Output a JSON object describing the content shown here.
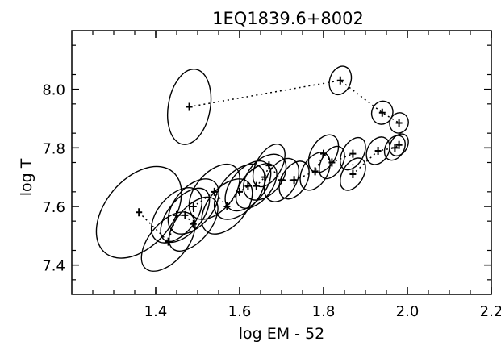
{
  "chart_data": {
    "type": "scatter",
    "title": "1EQ1839.6+8002",
    "xlabel": "log EM - 52",
    "ylabel": "log T",
    "xlim": [
      1.2,
      2.2
    ],
    "ylim": [
      7.3,
      8.2
    ],
    "xticks": [
      {
        "value": 1.4,
        "label": "1.4"
      },
      {
        "value": 1.6,
        "label": "1.6"
      },
      {
        "value": 1.8,
        "label": "1.8"
      },
      {
        "value": 2.0,
        "label": "2.0"
      },
      {
        "value": 2.2,
        "label": "2.2"
      }
    ],
    "yticks": [
      {
        "value": 7.4,
        "label": "7.4"
      },
      {
        "value": 7.6,
        "label": "7.6"
      },
      {
        "value": 7.8,
        "label": "7.8"
      },
      {
        "value": 8.0,
        "label": "8.0"
      }
    ],
    "grid": false,
    "legend": "none",
    "series": [
      {
        "points": [
          {
            "x": 1.48,
            "y": 7.94,
            "rx": 0.05,
            "ry": 0.13,
            "angle": 10
          },
          {
            "x": 1.84,
            "y": 8.03,
            "rx": 0.025,
            "ry": 0.05,
            "angle": 20
          },
          {
            "x": 1.94,
            "y": 7.92,
            "rx": 0.025,
            "ry": 0.04,
            "angle": 20
          },
          {
            "x": 1.98,
            "y": 7.885,
            "rx": 0.022,
            "ry": 0.035,
            "angle": 20
          }
        ]
      },
      {
        "points": [
          {
            "x": 1.36,
            "y": 7.58,
            "rx": 0.08,
            "ry": 0.18,
            "angle": 40
          },
          {
            "x": 1.43,
            "y": 7.48,
            "rx": 0.045,
            "ry": 0.12,
            "angle": 40
          },
          {
            "x": 1.45,
            "y": 7.57,
            "rx": 0.045,
            "ry": 0.11,
            "angle": 40
          },
          {
            "x": 1.47,
            "y": 7.57,
            "rx": 0.04,
            "ry": 0.11,
            "angle": 40
          },
          {
            "x": 1.49,
            "y": 7.54,
            "rx": 0.04,
            "ry": 0.11,
            "angle": 40
          },
          {
            "x": 1.49,
            "y": 7.6,
            "rx": 0.045,
            "ry": 0.11,
            "angle": 40
          },
          {
            "x": 1.54,
            "y": 7.65,
            "rx": 0.045,
            "ry": 0.11,
            "angle": 40
          },
          {
            "x": 1.57,
            "y": 7.6,
            "rx": 0.045,
            "ry": 0.11,
            "angle": 40
          },
          {
            "x": 1.6,
            "y": 7.65,
            "rx": 0.045,
            "ry": 0.11,
            "angle": 40
          },
          {
            "x": 1.62,
            "y": 7.67,
            "rx": 0.04,
            "ry": 0.1,
            "angle": 40
          },
          {
            "x": 1.64,
            "y": 7.67,
            "rx": 0.035,
            "ry": 0.09,
            "angle": 40
          },
          {
            "x": 1.66,
            "y": 7.7,
            "rx": 0.04,
            "ry": 0.09,
            "angle": 40
          },
          {
            "x": 1.67,
            "y": 7.74,
            "rx": 0.03,
            "ry": 0.08,
            "angle": 30
          },
          {
            "x": 1.7,
            "y": 7.69,
            "rx": 0.035,
            "ry": 0.08,
            "angle": 30
          },
          {
            "x": 1.73,
            "y": 7.69,
            "rx": 0.03,
            "ry": 0.07,
            "angle": 30
          },
          {
            "x": 1.78,
            "y": 7.72,
            "rx": 0.03,
            "ry": 0.07,
            "angle": 30
          },
          {
            "x": 1.8,
            "y": 7.78,
            "rx": 0.03,
            "ry": 0.07,
            "angle": 30
          },
          {
            "x": 1.82,
            "y": 7.75,
            "rx": 0.025,
            "ry": 0.06,
            "angle": 30
          },
          {
            "x": 1.87,
            "y": 7.78,
            "rx": 0.025,
            "ry": 0.06,
            "angle": 30
          },
          {
            "x": 1.87,
            "y": 7.71,
            "rx": 0.025,
            "ry": 0.06,
            "angle": 30
          },
          {
            "x": 1.93,
            "y": 7.79,
            "rx": 0.025,
            "ry": 0.05,
            "angle": 30
          },
          {
            "x": 1.97,
            "y": 7.8,
            "rx": 0.022,
            "ry": 0.045,
            "angle": 30
          },
          {
            "x": 1.98,
            "y": 7.81,
            "rx": 0.02,
            "ry": 0.04,
            "angle": 30
          }
        ]
      }
    ]
  }
}
